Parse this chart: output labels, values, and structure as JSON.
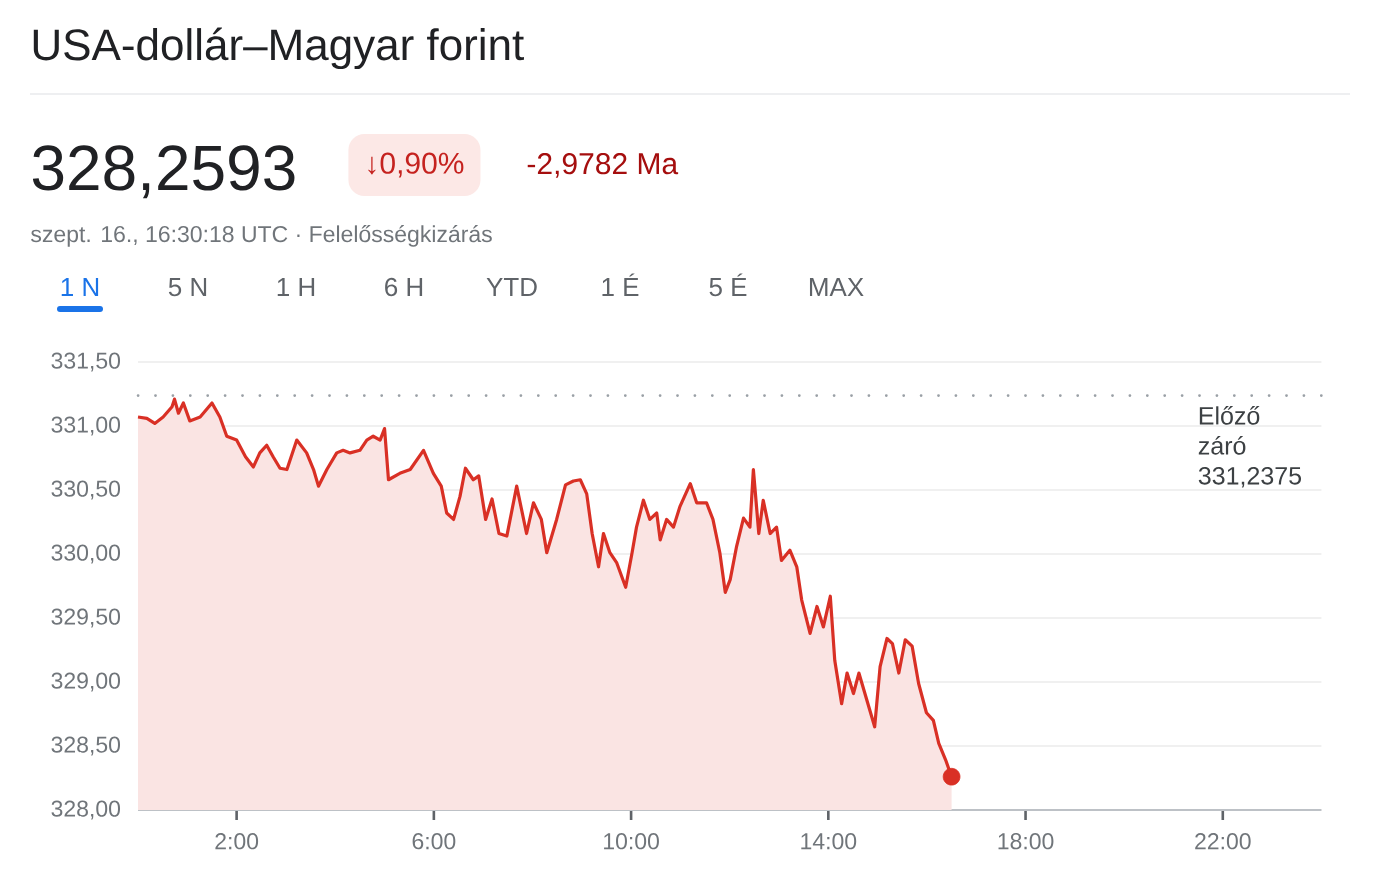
{
  "chart_data": {
    "type": "area",
    "title": "USA-dollár–Magyar forint",
    "subtitle": "szept. 16., 16:30:18 UTC · Felelősségkizárás",
    "annotations": [
      "328,2593",
      "↓0,90%",
      "-2,9782 Ma",
      "1 N",
      "5 N",
      "1 H",
      "6 H",
      "YTD",
      "1 É",
      "5 É",
      "MAX"
    ],
    "xlim": [
      0,
      24
    ],
    "xticks": [
      {
        "value": 2,
        "label": "2:00"
      },
      {
        "value": 6,
        "label": "6:00"
      },
      {
        "value": 10,
        "label": "10:00"
      },
      {
        "value": 14,
        "label": "14:00"
      },
      {
        "value": 18,
        "label": "18:00"
      },
      {
        "value": 22,
        "label": "22:00"
      }
    ],
    "ylim": [
      328,
      331.5
    ],
    "yticks": [
      {
        "value": 328,
        "label": "328,00"
      },
      {
        "value": 328.5,
        "label": "328,50"
      },
      {
        "value": 329,
        "label": "329,00"
      },
      {
        "value": 329.5,
        "label": "329,50"
      },
      {
        "value": 330,
        "label": "330,00"
      },
      {
        "value": 330.5,
        "label": "330,50"
      },
      {
        "value": 331,
        "label": "331,00"
      },
      {
        "value": 331.5,
        "label": "331,50"
      }
    ],
    "grid": "y",
    "ref_lines": [
      {
        "axis": "y",
        "value": 331.2375,
        "label": "Előző záró 331,2375",
        "color": "#9aa0a6",
        "line_style": "dotted"
      }
    ],
    "series": [
      {
        "color": "#d93025",
        "x": [
          0,
          0.18,
          0.34,
          0.51,
          0.69,
          0.74,
          0.82,
          0.92,
          1.05,
          1.26,
          1.5,
          1.66,
          1.8,
          2.0,
          2.18,
          2.34,
          2.47,
          2.61,
          2.74,
          2.88,
          3.02,
          3.22,
          3.42,
          3.56,
          3.66,
          3.83,
          4.03,
          4.16,
          4.3,
          4.5,
          4.64,
          4.77,
          4.91,
          5.0,
          5.08,
          5.31,
          5.52,
          5.79,
          5.99,
          6.15,
          6.26,
          6.4,
          6.53,
          6.64,
          6.8,
          6.91,
          7.05,
          7.18,
          7.32,
          7.48,
          7.68,
          7.88,
          8.02,
          8.18,
          8.29,
          8.49,
          8.67,
          8.83,
          8.97,
          9.1,
          9.21,
          9.34,
          9.44,
          9.57,
          9.71,
          9.89,
          10.02,
          10.11,
          10.25,
          10.38,
          10.52,
          10.59,
          10.72,
          10.86,
          10.99,
          11.2,
          11.33,
          11.53,
          11.66,
          11.8,
          11.91,
          12.01,
          12.14,
          12.28,
          12.41,
          12.48,
          12.59,
          12.68,
          12.82,
          12.95,
          13.05,
          13.22,
          13.36,
          13.46,
          13.63,
          13.77,
          13.9,
          14.04,
          14.13,
          14.27,
          14.38,
          14.51,
          14.62,
          14.78,
          14.94,
          15.05,
          15.19,
          15.3,
          15.43,
          15.56,
          15.7,
          15.83,
          15.99,
          16.13,
          16.24,
          16.38,
          16.5
        ],
        "values": [
          331.07,
          331.06,
          331.02,
          331.07,
          331.15,
          331.21,
          331.1,
          331.18,
          331.04,
          331.07,
          331.18,
          331.07,
          330.92,
          330.89,
          330.76,
          330.68,
          330.79,
          330.85,
          330.76,
          330.67,
          330.66,
          330.89,
          330.79,
          330.66,
          330.53,
          330.66,
          330.79,
          330.81,
          330.79,
          330.81,
          330.89,
          330.92,
          330.89,
          330.98,
          330.58,
          330.63,
          330.66,
          330.81,
          330.63,
          330.53,
          330.32,
          330.27,
          330.45,
          330.67,
          330.58,
          330.61,
          330.27,
          330.43,
          330.16,
          330.14,
          330.53,
          330.16,
          330.4,
          330.27,
          330.01,
          330.27,
          330.54,
          330.57,
          330.58,
          330.47,
          330.16,
          329.9,
          330.16,
          330.01,
          329.93,
          329.74,
          330.01,
          330.21,
          330.42,
          330.27,
          330.32,
          330.11,
          330.27,
          330.21,
          330.37,
          330.55,
          330.4,
          330.4,
          330.27,
          330.01,
          329.7,
          329.8,
          330.06,
          330.28,
          330.21,
          330.66,
          330.16,
          330.42,
          330.16,
          330.21,
          329.95,
          330.03,
          329.9,
          329.64,
          329.38,
          329.59,
          329.43,
          329.67,
          329.17,
          328.83,
          329.07,
          328.91,
          329.07,
          328.86,
          328.65,
          329.12,
          329.34,
          329.3,
          329.07,
          329.33,
          329.28,
          328.99,
          328.76,
          328.7,
          328.52,
          328.39,
          328.26
        ]
      },
      {
        "type": "scatter",
        "color": "#d93025",
        "marker": "circle",
        "x": [
          16.5
        ],
        "values": [
          328.26
        ]
      }
    ]
  }
}
